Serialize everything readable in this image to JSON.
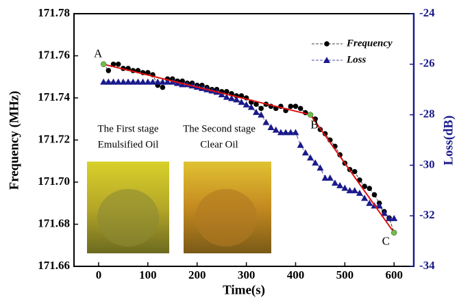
{
  "chart_data": {
    "type": "line",
    "x_label": "Time(s)",
    "y_label": "Frequency (MHz)",
    "y2_label": "Loss(dB)",
    "xlim": [
      -50,
      640
    ],
    "xticks": [
      0,
      100,
      200,
      300,
      400,
      500,
      600
    ],
    "ylim": [
      171.66,
      171.78
    ],
    "yticks": [
      171.66,
      171.68,
      {
        "value": 171.7,
        "label": "171.70"
      },
      171.72,
      171.74,
      171.76,
      171.78
    ],
    "y2lim": [
      -34,
      -24
    ],
    "y2ticks": [
      -34,
      -32,
      -30,
      -28,
      -26,
      -24
    ],
    "y2_color": "#1a1a8c",
    "legend": "top-right",
    "series": [
      {
        "name": "Frequency",
        "color": "#000000",
        "marker": "circle",
        "x": [
          10,
          20,
          30,
          40,
          50,
          60,
          70,
          80,
          90,
          100,
          110,
          120,
          130,
          140,
          150,
          160,
          170,
          180,
          190,
          200,
          210,
          220,
          230,
          240,
          250,
          260,
          270,
          280,
          290,
          300,
          310,
          320,
          330,
          340,
          350,
          360,
          370,
          380,
          390,
          400,
          410,
          420,
          430,
          440,
          450,
          460,
          470,
          480,
          490,
          500,
          510,
          520,
          530,
          540,
          550,
          560,
          570,
          580,
          590,
          600
        ],
        "values": [
          171.756,
          171.753,
          171.756,
          171.756,
          171.754,
          171.754,
          171.753,
          171.753,
          171.752,
          171.752,
          171.751,
          171.746,
          171.745,
          171.749,
          171.749,
          171.748,
          171.748,
          171.747,
          171.747,
          171.746,
          171.746,
          171.745,
          171.744,
          171.744,
          171.743,
          171.743,
          171.742,
          171.741,
          171.741,
          171.74,
          171.738,
          171.737,
          171.735,
          171.737,
          171.736,
          171.735,
          171.736,
          171.734,
          171.736,
          171.736,
          171.735,
          171.733,
          171.732,
          171.73,
          171.725,
          171.723,
          171.72,
          171.717,
          171.713,
          171.709,
          171.706,
          171.705,
          171.701,
          171.698,
          171.697,
          171.694,
          171.69,
          171.686,
          171.683,
          171.676
        ]
      },
      {
        "name": "Loss",
        "color": "#1a1a8c",
        "marker": "triangle",
        "axis": "y2",
        "x": [
          10,
          20,
          30,
          40,
          50,
          60,
          70,
          80,
          90,
          100,
          110,
          120,
          130,
          140,
          150,
          160,
          170,
          180,
          190,
          200,
          210,
          220,
          230,
          240,
          250,
          260,
          270,
          280,
          290,
          300,
          310,
          320,
          330,
          340,
          350,
          360,
          370,
          380,
          390,
          400,
          410,
          420,
          430,
          440,
          450,
          460,
          470,
          480,
          490,
          500,
          510,
          520,
          530,
          540,
          550,
          560,
          570,
          580,
          590,
          600
        ],
        "values": [
          -26.7,
          -26.7,
          -26.7,
          -26.7,
          -26.7,
          -26.7,
          -26.7,
          -26.7,
          -26.7,
          -26.7,
          -26.7,
          -26.7,
          -26.7,
          -26.7,
          -26.7,
          -26.75,
          -26.8,
          -26.8,
          -26.85,
          -26.9,
          -26.95,
          -27.0,
          -27.05,
          -27.1,
          -27.2,
          -27.3,
          -27.35,
          -27.4,
          -27.5,
          -27.6,
          -27.7,
          -27.9,
          -28.0,
          -28.3,
          -28.5,
          -28.6,
          -28.7,
          -28.7,
          -28.7,
          -28.7,
          -29.2,
          -29.5,
          -29.7,
          -29.9,
          -30.1,
          -30.5,
          -30.5,
          -30.7,
          -30.8,
          -30.9,
          -31.0,
          -31.0,
          -31.1,
          -31.3,
          -31.5,
          -31.6,
          -31.6,
          -31.9,
          -32.1,
          -32.1
        ]
      }
    ],
    "trend_line": {
      "color": "#e01010",
      "x": [
        10,
        430,
        600
      ],
      "values": [
        171.756,
        171.732,
        171.676
      ]
    },
    "points": [
      {
        "label": "A",
        "x": 10,
        "value": 171.756
      },
      {
        "label": "B",
        "x": 430,
        "value": 171.732
      },
      {
        "label": "C",
        "x": 600,
        "value": 171.676
      }
    ],
    "point_color": "#6cbf4a",
    "annotations": [
      "The First stage",
      "Emulsified Oil",
      "The Second stage",
      "Clear Oil"
    ]
  }
}
